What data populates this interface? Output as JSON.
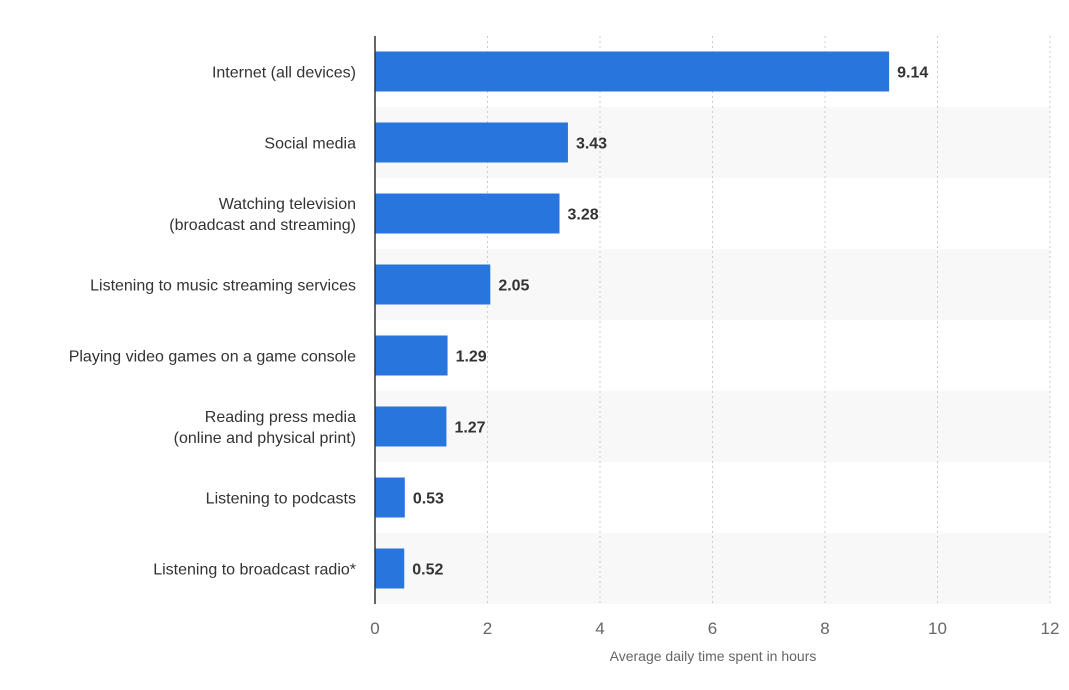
{
  "chart_data": {
    "type": "bar",
    "orientation": "horizontal",
    "categories": [
      [
        "Internet (all devices)"
      ],
      [
        "Social media"
      ],
      [
        "Watching television",
        "(broadcast and streaming)"
      ],
      [
        "Listening to music streaming services"
      ],
      [
        "Playing video games on a game console"
      ],
      [
        "Reading press media",
        "(online and physical print)"
      ],
      [
        "Listening to podcasts"
      ],
      [
        "Listening to broadcast radio*"
      ]
    ],
    "values": [
      9.14,
      3.43,
      3.28,
      2.05,
      1.29,
      1.27,
      0.53,
      0.52
    ],
    "value_labels": [
      "9.14",
      "3.43",
      "3.28",
      "2.05",
      "1.29",
      "1.27",
      "0.53",
      "0.52"
    ],
    "xlabel": "Average daily time spent in hours",
    "xlim": [
      0,
      12
    ],
    "xticks": [
      0,
      2,
      4,
      6,
      8,
      10,
      12
    ],
    "grid": true,
    "bar_color": "#2876dd",
    "band_color": "#f8f8f8"
  }
}
